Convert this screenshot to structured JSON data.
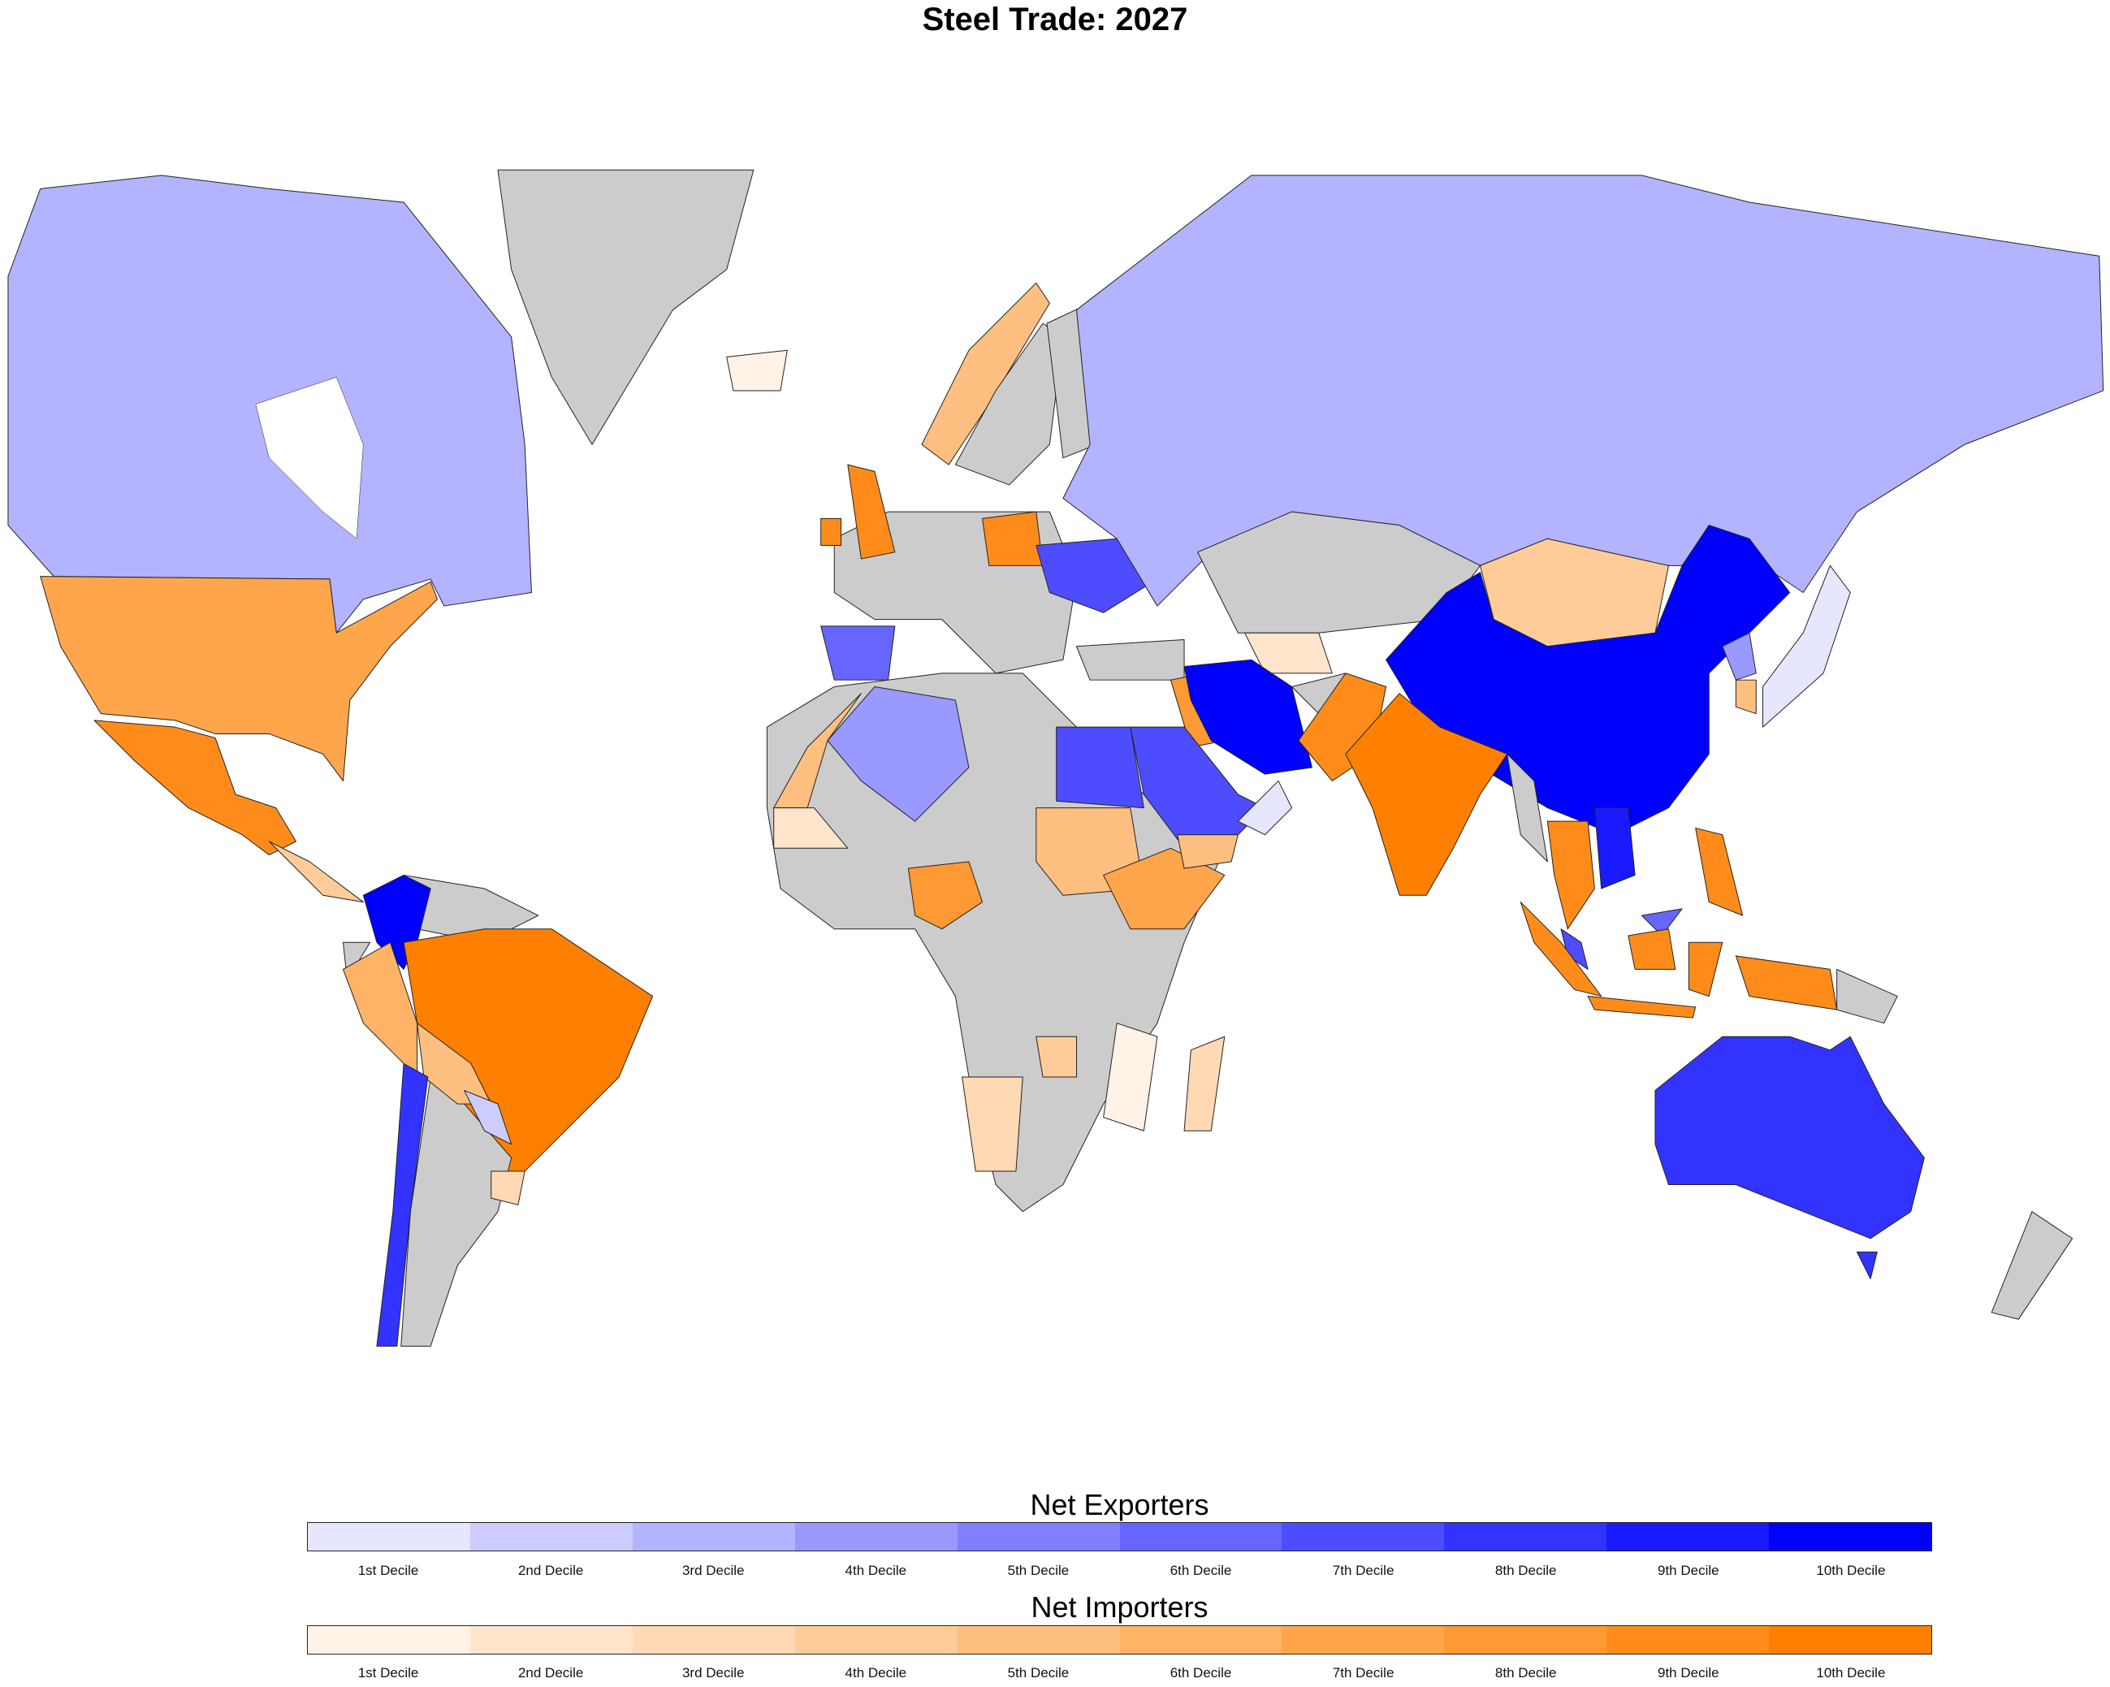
{
  "title": "Steel Trade: 2027",
  "legend": {
    "exporters": {
      "title": "Net Exporters",
      "labels": [
        "1st Decile",
        "2nd Decile",
        "3rd Decile",
        "4th Decile",
        "5th Decile",
        "6th Decile",
        "7th Decile",
        "8th Decile",
        "9th Decile",
        "10th Decile"
      ],
      "colors": [
        "#e6e6ff",
        "#ccccff",
        "#b3b3ff",
        "#9999ff",
        "#8080ff",
        "#6666ff",
        "#4d4dff",
        "#3333ff",
        "#1a1aff",
        "#0000ff"
      ]
    },
    "importers": {
      "title": "Net Importers",
      "labels": [
        "1st Decile",
        "2nd Decile",
        "3rd Decile",
        "4th Decile",
        "5th Decile",
        "6th Decile",
        "7th Decile",
        "8th Decile",
        "9th Decile",
        "10th Decile"
      ],
      "colors": [
        "#fff2e6",
        "#ffe5cc",
        "#ffd9b3",
        "#ffcc99",
        "#ffbf80",
        "#ffb366",
        "#ffa64d",
        "#ff9933",
        "#ff8c1a",
        "#ff8000"
      ]
    }
  },
  "map": {
    "no_data_color": "#cccccc"
  }
}
